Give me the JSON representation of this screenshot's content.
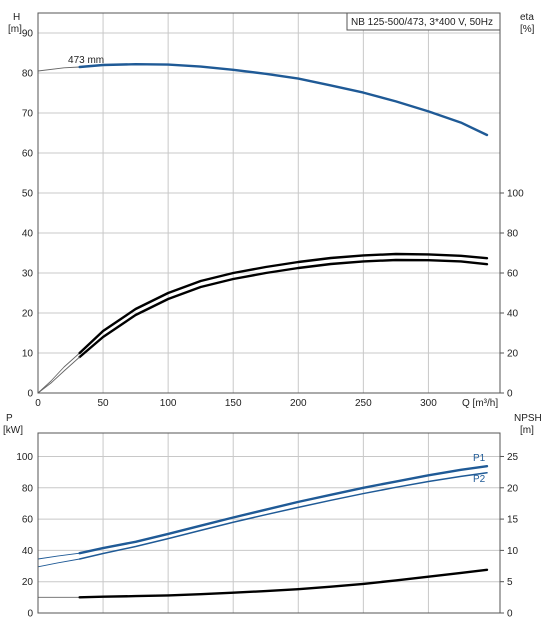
{
  "legend_box": {
    "text": "NB 125-500/473, 3*400 V, 50Hz"
  },
  "colors": {
    "blue": "#1f5a96",
    "black": "#000000",
    "grid": "#c8c8c8",
    "thin": "#666666"
  },
  "chart_data": [
    {
      "type": "line",
      "id": "top",
      "x_label": "Q [m³/h]",
      "y_left": {
        "label_line1": "H",
        "label_line2": "[m]",
        "range": [
          0,
          95
        ],
        "ticks": [
          0,
          10,
          20,
          30,
          40,
          50,
          60,
          70,
          80,
          90
        ]
      },
      "y_right": {
        "label_line1": "eta",
        "label_line2": "[%]",
        "range": [
          0,
          190
        ],
        "ticks": [
          0,
          20,
          40,
          60,
          80,
          100
        ]
      },
      "x": {
        "range": [
          0,
          355
        ],
        "ticks": [
          0,
          50,
          100,
          150,
          200,
          250,
          300
        ]
      },
      "grid": true,
      "annotations": [
        {
          "text": "473 mm",
          "x": 20,
          "y": 82
        }
      ],
      "series": [
        {
          "axis": "left",
          "style": "thin",
          "color": "#666666",
          "points": [
            [
              0,
              80.5
            ],
            [
              20,
              81.3
            ],
            [
              32,
              81.5
            ]
          ]
        },
        {
          "axis": "left",
          "style": "thick",
          "color": "#1f5a96",
          "points": [
            [
              32,
              81.5
            ],
            [
              50,
              82.0
            ],
            [
              75,
              82.2
            ],
            [
              100,
              82.1
            ],
            [
              125,
              81.6
            ],
            [
              150,
              80.8
            ],
            [
              175,
              79.8
            ],
            [
              200,
              78.6
            ],
            [
              225,
              76.9
            ],
            [
              250,
              75.1
            ],
            [
              275,
              72.9
            ],
            [
              300,
              70.4
            ],
            [
              325,
              67.6
            ],
            [
              345,
              64.5
            ]
          ]
        },
        {
          "axis": "right",
          "style": "thin",
          "color": "#666666",
          "points": [
            [
              0,
              0
            ],
            [
              10,
              6
            ],
            [
              20,
              13
            ],
            [
              32,
              20
            ]
          ]
        },
        {
          "axis": "right",
          "style": "thick",
          "color": "#000000",
          "points": [
            [
              32,
              20
            ],
            [
              50,
              31
            ],
            [
              75,
              42
            ],
            [
              100,
              50
            ],
            [
              125,
              56
            ],
            [
              150,
              60
            ],
            [
              175,
              63
            ],
            [
              200,
              65.5
            ],
            [
              225,
              67.5
            ],
            [
              250,
              68.8
            ],
            [
              275,
              69.5
            ],
            [
              300,
              69.3
            ],
            [
              325,
              68.6
            ],
            [
              345,
              67.4
            ]
          ]
        },
        {
          "axis": "right",
          "style": "thick",
          "color": "#000000",
          "points": [
            [
              32,
              18
            ],
            [
              50,
              28
            ],
            [
              75,
              39
            ],
            [
              100,
              47
            ],
            [
              125,
              53
            ],
            [
              150,
              57
            ],
            [
              175,
              60
            ],
            [
              200,
              62.5
            ],
            [
              225,
              64.5
            ],
            [
              250,
              65.8
            ],
            [
              275,
              66.5
            ],
            [
              300,
              66.4
            ],
            [
              325,
              65.8
            ],
            [
              345,
              64.4
            ]
          ]
        },
        {
          "axis": "right",
          "style": "thin",
          "color": "#666666",
          "points": [
            [
              0,
              0
            ],
            [
              10,
              5
            ],
            [
              20,
              11
            ],
            [
              32,
              18
            ]
          ]
        }
      ]
    },
    {
      "type": "line",
      "id": "bottom",
      "y_left": {
        "label_line1": "P",
        "label_line2": "[kW]",
        "range": [
          0,
          115
        ],
        "ticks": [
          0,
          20,
          40,
          60,
          80,
          100
        ]
      },
      "y_right": {
        "label_line1": "NPSH",
        "label_line2": "[m]",
        "range": [
          0,
          28.75
        ],
        "ticks": [
          0,
          5,
          10,
          15,
          20,
          25
        ]
      },
      "x": {
        "range": [
          0,
          355
        ],
        "ticks": []
      },
      "grid": true,
      "series": [
        {
          "name": "P1",
          "axis": "left",
          "style": "thick",
          "color": "#1f5a96",
          "points": [
            [
              32,
              38.2
            ],
            [
              50,
              41.5
            ],
            [
              75,
              45.5
            ],
            [
              100,
              50.5
            ],
            [
              125,
              55.8
            ],
            [
              150,
              61.0
            ],
            [
              175,
              66.0
            ],
            [
              200,
              71.0
            ],
            [
              225,
              75.5
            ],
            [
              250,
              80.0
            ],
            [
              275,
              84.0
            ],
            [
              300,
              88.0
            ],
            [
              325,
              91.5
            ],
            [
              345,
              93.8
            ]
          ]
        },
        {
          "axis": "left",
          "style": "thin",
          "color": "#1f5a96",
          "points": [
            [
              0,
              34.5
            ],
            [
              15,
              36.4
            ],
            [
              32,
              38.2
            ]
          ]
        },
        {
          "name": "P2",
          "axis": "left",
          "style": "medium",
          "color": "#1f5a96",
          "points": [
            [
              32,
              34.5
            ],
            [
              50,
              38.0
            ],
            [
              75,
              42.5
            ],
            [
              100,
              47.5
            ],
            [
              125,
              52.8
            ],
            [
              150,
              58.0
            ],
            [
              175,
              62.8
            ],
            [
              200,
              67.5
            ],
            [
              225,
              72.0
            ],
            [
              250,
              76.3
            ],
            [
              275,
              80.3
            ],
            [
              300,
              84.0
            ],
            [
              325,
              87.3
            ],
            [
              345,
              89.6
            ]
          ]
        },
        {
          "axis": "left",
          "style": "thin",
          "color": "#1f5a96",
          "points": [
            [
              0,
              29.5
            ],
            [
              15,
              32.0
            ],
            [
              32,
              34.5
            ]
          ]
        },
        {
          "axis": "right",
          "style": "thin",
          "color": "#666666",
          "points": [
            [
              0,
              2.5
            ],
            [
              32,
              2.5
            ]
          ]
        },
        {
          "axis": "right",
          "style": "thick",
          "color": "#000000",
          "points": [
            [
              32,
              2.5
            ],
            [
              50,
              2.6
            ],
            [
              75,
              2.7
            ],
            [
              100,
              2.8
            ],
            [
              125,
              3.0
            ],
            [
              150,
              3.25
            ],
            [
              175,
              3.5
            ],
            [
              200,
              3.8
            ],
            [
              225,
              4.2
            ],
            [
              250,
              4.65
            ],
            [
              275,
              5.2
            ],
            [
              300,
              5.8
            ],
            [
              325,
              6.4
            ],
            [
              345,
              6.9
            ]
          ]
        }
      ]
    }
  ]
}
